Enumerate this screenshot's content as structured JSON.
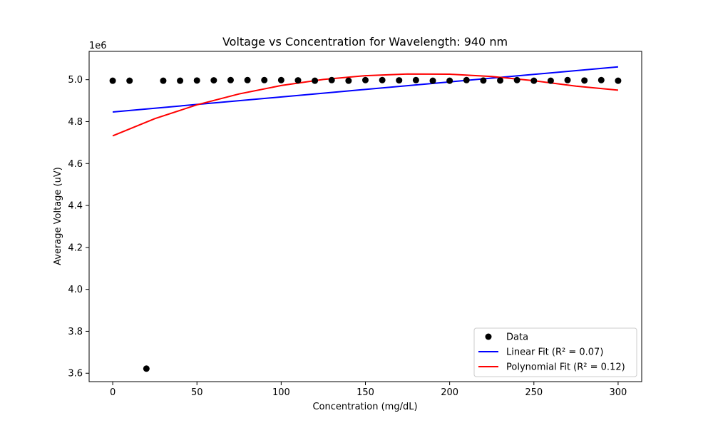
{
  "chart_data": {
    "type": "scatter",
    "title": "Voltage vs Concentration for Wavelength: 940 nm",
    "xlabel": "Concentration (mg/dL)",
    "ylabel": "Average Voltage (uV)",
    "y_offset_label": "1e6",
    "xlim": [
      -14,
      314
    ],
    "ylim": [
      3.56,
      5.135
    ],
    "x_ticks": [
      0,
      50,
      100,
      150,
      200,
      250,
      300
    ],
    "x_tick_labels": [
      "0",
      "50",
      "100",
      "150",
      "200",
      "250",
      "300"
    ],
    "y_ticks": [
      3.6,
      3.8,
      4.0,
      4.2,
      4.4,
      4.6,
      4.8,
      5.0
    ],
    "y_tick_labels": [
      "3.6",
      "3.8",
      "4.0",
      "4.2",
      "4.4",
      "4.6",
      "4.8",
      "5.0"
    ],
    "grid": false,
    "legend_position": "lower-right",
    "series": [
      {
        "name": "Data",
        "kind": "scatter",
        "color": "#000000",
        "x": [
          0,
          10,
          20,
          30,
          40,
          50,
          60,
          70,
          80,
          90,
          100,
          110,
          120,
          130,
          140,
          150,
          160,
          170,
          180,
          190,
          200,
          210,
          220,
          230,
          240,
          250,
          260,
          270,
          280,
          290,
          300
        ],
        "y": [
          4.995,
          4.995,
          3.622,
          4.995,
          4.995,
          4.996,
          4.997,
          4.998,
          4.998,
          4.998,
          4.998,
          4.997,
          4.995,
          4.998,
          4.995,
          4.998,
          4.998,
          4.997,
          4.998,
          4.995,
          4.995,
          4.998,
          4.996,
          4.996,
          4.998,
          4.995,
          4.995,
          4.998,
          4.996,
          4.998,
          4.995
        ]
      },
      {
        "name": "Linear Fit (R² = 0.07)",
        "kind": "line",
        "color": "#0000ff",
        "x": [
          0,
          300
        ],
        "y": [
          4.846,
          5.061
        ]
      },
      {
        "name": "Polynomial Fit (R² = 0.12)",
        "kind": "line",
        "color": "#ff0000",
        "x": [
          0,
          25,
          50,
          75,
          100,
          125,
          150,
          175,
          200,
          225,
          250,
          275,
          300
        ],
        "y": [
          4.732,
          4.814,
          4.88,
          4.932,
          4.972,
          5.001,
          5.019,
          5.027,
          5.026,
          5.015,
          4.995,
          4.969,
          4.95
        ]
      }
    ]
  }
}
